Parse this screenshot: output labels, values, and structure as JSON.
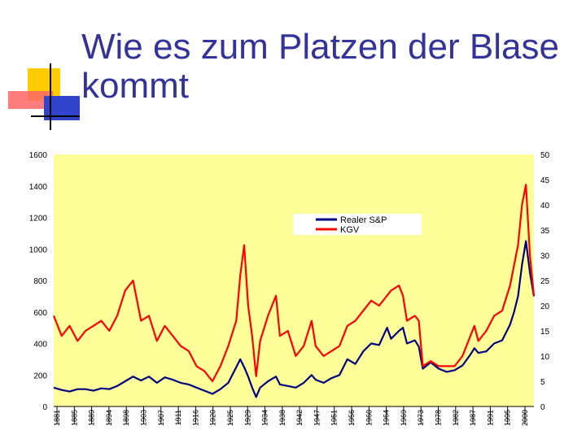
{
  "slide": {
    "title_line1": "Wie es zum Platzen der Blase",
    "title_line2": "kommt",
    "accent_colors": {
      "title": "#333399",
      "yellow": "#ffcc00",
      "red": "#ff3333",
      "blue": "#3333cc"
    }
  },
  "chart_data": {
    "type": "line",
    "title": "",
    "background": "#ffff99",
    "grid": false,
    "legend": {
      "placement": "top-right-center",
      "entries": [
        "Realer S&P",
        "KGV"
      ]
    },
    "x_ticks": [
      "1881",
      "1885",
      "1889",
      "1894",
      "1898",
      "1903",
      "1907",
      "1911",
      "1916",
      "1920",
      "1925",
      "1929",
      "1934",
      "1938",
      "1942",
      "1947",
      "1951",
      "1956",
      "1960",
      "1964",
      "1969",
      "1973",
      "1978",
      "1982",
      "1987",
      "1991",
      "1995",
      "2000"
    ],
    "y_left": {
      "ticks": [
        "1600",
        "1400",
        "1200",
        "1000",
        "800",
        "600",
        "400",
        "200",
        "0"
      ],
      "ylim": [
        0,
        1600
      ]
    },
    "y_right": {
      "ticks": [
        "50",
        "45",
        "40",
        "35",
        "30",
        "25",
        "20",
        "15",
        "10",
        "5",
        "0"
      ],
      "ylim": [
        0,
        50
      ]
    },
    "xlim": [
      1881,
      2002
    ],
    "series": [
      {
        "name": "Realer S&P",
        "axis": "left",
        "color": "#000080",
        "x": [
          1881,
          1883,
          1885,
          1887,
          1889,
          1891,
          1893,
          1895,
          1897,
          1899,
          1901,
          1903,
          1905,
          1907,
          1909,
          1911,
          1913,
          1915,
          1917,
          1919,
          1921,
          1923,
          1925,
          1927,
          1928,
          1929,
          1930,
          1931,
          1932,
          1933,
          1935,
          1937,
          1938,
          1940,
          1942,
          1944,
          1946,
          1947,
          1949,
          1951,
          1953,
          1955,
          1957,
          1959,
          1961,
          1963,
          1965,
          1966,
          1968,
          1969,
          1970,
          1972,
          1973,
          1974,
          1976,
          1978,
          1980,
          1982,
          1984,
          1986,
          1987,
          1988,
          1990,
          1992,
          1994,
          1996,
          1997,
          1998,
          1999,
          2000,
          2001,
          2002
        ],
        "y": [
          120,
          105,
          95,
          110,
          110,
          100,
          115,
          110,
          130,
          160,
          190,
          165,
          190,
          150,
          185,
          170,
          150,
          140,
          120,
          100,
          80,
          110,
          150,
          250,
          300,
          250,
          190,
          120,
          60,
          120,
          160,
          190,
          140,
          130,
          120,
          150,
          200,
          170,
          150,
          180,
          200,
          300,
          270,
          350,
          400,
          390,
          500,
          430,
          480,
          500,
          400,
          420,
          380,
          240,
          280,
          240,
          220,
          230,
          260,
          330,
          370,
          340,
          350,
          400,
          420,
          520,
          600,
          700,
          900,
          1050,
          850,
          700
        ]
      },
      {
        "name": "KGV",
        "axis": "right",
        "color": "#ff0000",
        "x": [
          1881,
          1883,
          1885,
          1887,
          1889,
          1891,
          1893,
          1895,
          1897,
          1899,
          1901,
          1903,
          1905,
          1907,
          1909,
          1911,
          1913,
          1915,
          1917,
          1919,
          1921,
          1923,
          1925,
          1927,
          1928,
          1929,
          1930,
          1931,
          1932,
          1933,
          1935,
          1937,
          1938,
          1940,
          1942,
          1944,
          1946,
          1947,
          1949,
          1951,
          1953,
          1955,
          1957,
          1959,
          1961,
          1963,
          1965,
          1966,
          1968,
          1969,
          1970,
          1972,
          1973,
          1974,
          1976,
          1978,
          1980,
          1982,
          1984,
          1986,
          1987,
          1988,
          1990,
          1992,
          1994,
          1996,
          1997,
          1998,
          1999,
          2000,
          2001,
          2002
        ],
        "y": [
          18,
          14,
          16,
          13,
          15,
          16,
          17,
          15,
          18,
          23,
          25,
          17,
          18,
          13,
          16,
          14,
          12,
          11,
          8,
          7,
          5,
          8,
          12,
          17,
          26,
          32,
          20,
          14,
          6,
          13,
          18,
          22,
          14,
          15,
          10,
          12,
          17,
          12,
          10,
          11,
          12,
          16,
          17,
          19,
          21,
          20,
          22,
          23,
          24,
          22,
          17,
          18,
          17,
          8,
          9,
          8,
          8,
          8,
          10,
          14,
          16,
          13,
          15,
          18,
          19,
          24,
          28,
          32,
          40,
          44,
          30,
          22
        ]
      }
    ]
  }
}
